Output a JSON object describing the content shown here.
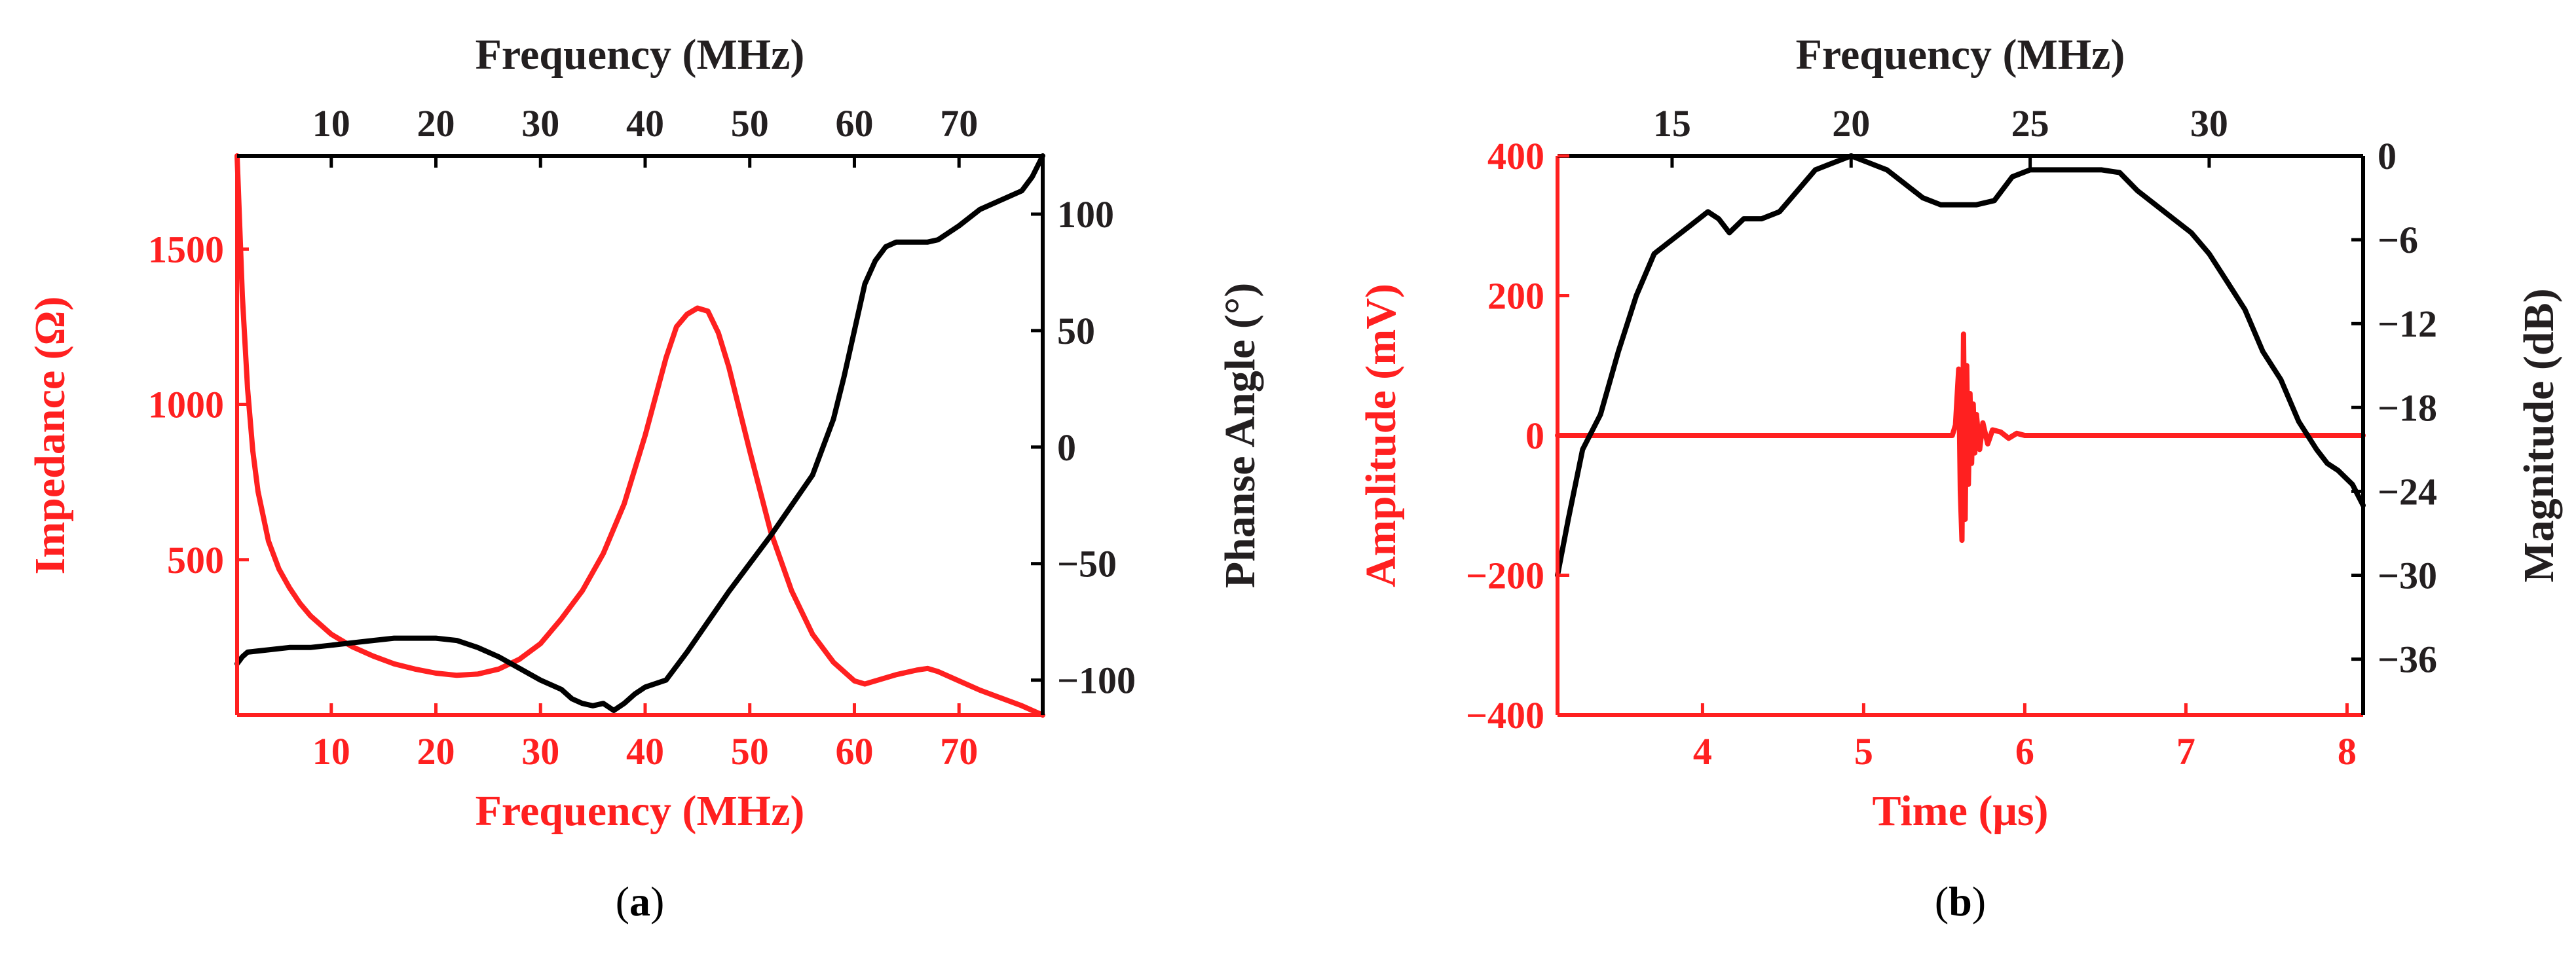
{
  "colors": {
    "primary": "#ff2020",
    "secondary": "#000000",
    "text_dark": "#231f20"
  },
  "chart_data": [
    {
      "panel": "a",
      "panel_label": "(a)",
      "panel_letter": "a",
      "type": "line",
      "xlabel": "Frequency (MHz)",
      "x2label": "Frequency (MHz)",
      "ylabel": "Impedance (Ω)",
      "y2label": "Phanse Angle (°)",
      "xlim": [
        1,
        78
      ],
      "ylim": [
        0,
        1800
      ],
      "y2lim": [
        -115,
        125
      ],
      "xticks": [
        10,
        20,
        30,
        40,
        50,
        60,
        70
      ],
      "x2ticks": [
        10,
        20,
        30,
        40,
        50,
        60,
        70
      ],
      "yticks": [
        500,
        1000,
        1500
      ],
      "y2ticks": [
        -100,
        -50,
        0,
        50,
        100
      ],
      "series": [
        {
          "name": "Impedance",
          "axis": "left",
          "color": "#ff2020",
          "x": [
            1,
            1.5,
            2,
            2.5,
            3,
            4,
            5,
            6,
            7,
            8,
            10,
            12,
            14,
            16,
            18,
            20,
            22,
            24,
            26,
            28,
            30,
            32,
            34,
            36,
            38,
            40,
            42,
            43,
            44,
            45,
            46,
            47,
            48,
            50,
            52,
            54,
            56,
            58,
            60,
            61,
            62,
            64,
            66,
            67,
            68,
            70,
            72,
            74,
            76,
            78
          ],
          "values": [
            1800,
            1350,
            1050,
            850,
            720,
            560,
            470,
            410,
            360,
            320,
            260,
            220,
            190,
            165,
            148,
            135,
            128,
            132,
            148,
            180,
            230,
            310,
            400,
            520,
            680,
            900,
            1150,
            1250,
            1290,
            1310,
            1300,
            1230,
            1120,
            850,
            590,
            400,
            260,
            170,
            110,
            100,
            110,
            130,
            145,
            150,
            140,
            110,
            80,
            55,
            30,
            0
          ]
        },
        {
          "name": "Phase Angle",
          "axis": "right",
          "color": "#000000",
          "x": [
            1,
            1.5,
            2,
            4,
            6,
            8,
            10,
            12,
            14,
            16,
            18,
            20,
            22,
            24,
            26,
            28,
            30,
            32,
            33,
            34,
            35,
            36,
            37,
            38,
            39,
            40,
            42,
            44,
            46,
            48,
            50,
            52,
            54,
            56,
            57,
            58,
            59,
            60,
            61,
            62,
            63,
            64,
            65,
            66,
            67,
            68,
            70,
            72,
            74,
            76,
            77,
            78
          ],
          "values": [
            -93,
            -90,
            -88,
            -87,
            -86,
            -86,
            -85,
            -84,
            -83,
            -82,
            -82,
            -82,
            -83,
            -86,
            -90,
            -95,
            -100,
            -104,
            -108,
            -110,
            -111,
            -110,
            -113,
            -110,
            -106,
            -103,
            -100,
            -88,
            -75,
            -62,
            -50,
            -38,
            -25,
            -12,
            0,
            12,
            30,
            50,
            70,
            80,
            86,
            88,
            88,
            88,
            88,
            89,
            95,
            102,
            106,
            110,
            116,
            125
          ]
        }
      ]
    },
    {
      "panel": "b",
      "panel_label": "(b)",
      "panel_letter": "b",
      "type": "line",
      "xlabel": "Time (μs)",
      "x2label": "Frequency (MHz)",
      "ylabel": "Amplitude (mV)",
      "y2label": "Magnitude (dB)",
      "xlim": [
        3.1,
        8.1
      ],
      "ylim": [
        -400,
        400
      ],
      "x2lim": [
        11.8,
        34.3
      ],
      "y2lim": [
        -40,
        0
      ],
      "xticks": [
        4,
        5,
        6,
        7,
        8
      ],
      "x2ticks": [
        15,
        20,
        25,
        30
      ],
      "yticks": [
        -400,
        -200,
        0,
        200,
        400
      ],
      "y2ticks": [
        0,
        -6,
        -12,
        -18,
        -24,
        -30,
        -36
      ],
      "series": [
        {
          "name": "Amplitude",
          "axis": "left",
          "x_axis": "bottom",
          "color": "#ff2020",
          "x": [
            3.1,
            5.55,
            5.57,
            5.59,
            5.6,
            5.61,
            5.62,
            5.63,
            5.64,
            5.65,
            5.66,
            5.67,
            5.68,
            5.69,
            5.7,
            5.72,
            5.74,
            5.77,
            5.8,
            5.85,
            5.9,
            5.95,
            6.0,
            8.1
          ],
          "values": [
            0,
            0,
            15,
            95,
            -80,
            -150,
            145,
            -120,
            100,
            -70,
            60,
            -40,
            45,
            -25,
            30,
            -20,
            18,
            -12,
            8,
            5,
            -4,
            3,
            0,
            0
          ]
        },
        {
          "name": "Magnitude",
          "axis": "right",
          "x_axis": "top",
          "color": "#000000",
          "x": [
            11.8,
            12.1,
            12.5,
            13,
            13.5,
            14,
            14.5,
            15,
            15.5,
            16,
            16.3,
            16.6,
            17,
            17.5,
            18,
            18.5,
            19,
            19.5,
            20,
            20.5,
            21,
            21.5,
            22,
            22.5,
            23,
            23.5,
            24,
            24.5,
            25,
            25.5,
            26,
            26.5,
            27,
            27.5,
            28,
            28.5,
            29,
            29.5,
            30,
            30.5,
            31,
            31.5,
            32,
            32.5,
            33,
            33.3,
            33.6,
            34,
            34.3
          ],
          "values": [
            -30,
            -26,
            -21,
            -18.5,
            -14,
            -10,
            -7,
            -6,
            -5,
            -4,
            -4.5,
            -5.5,
            -4.5,
            -4.5,
            -4,
            -2.5,
            -1,
            -0.5,
            0,
            -0.5,
            -1,
            -2,
            -3,
            -3.5,
            -3.5,
            -3.5,
            -3.2,
            -1.5,
            -1,
            -1,
            -1,
            -1,
            -1,
            -1.2,
            -2.5,
            -3.5,
            -4.5,
            -5.5,
            -7,
            -9,
            -11,
            -14,
            -16,
            -19,
            -21,
            -22,
            -22.5,
            -23.5,
            -25
          ]
        }
      ]
    }
  ]
}
